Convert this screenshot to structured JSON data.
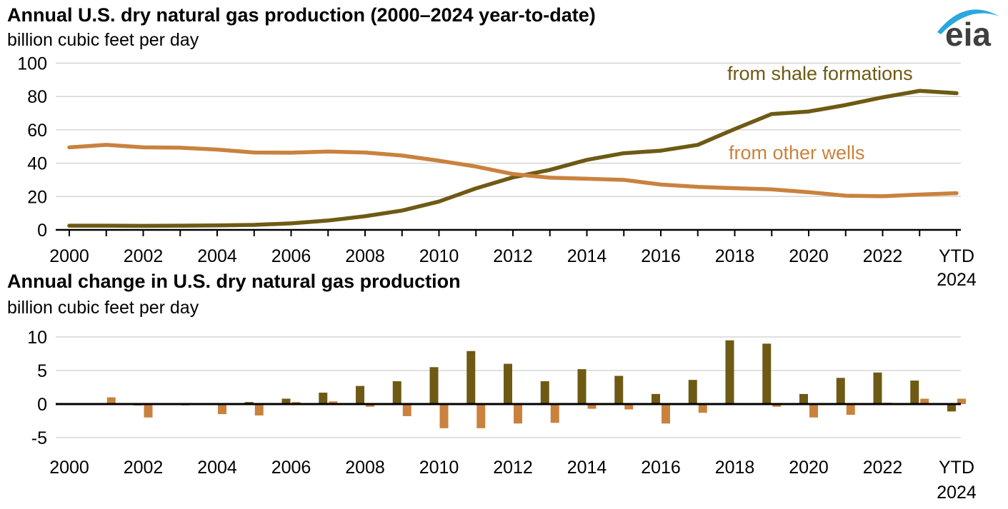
{
  "logo": {
    "text": "eia",
    "text_color": "#3f3f3f",
    "swoosh_color": "#29a7df"
  },
  "colors": {
    "shale": "#6e5a14",
    "other_wells": "#c9823e",
    "gridline": "#d6d6d6",
    "axis": "#000000",
    "background": "#ffffff"
  },
  "chart_data": [
    {
      "type": "line",
      "title": "Annual U.S. dry natural gas production (2000–2024 year-to-date)",
      "ylabel": "billion cubic feet per day",
      "ylim": [
        0,
        100
      ],
      "yticks": [
        0,
        20,
        40,
        60,
        80,
        100
      ],
      "grid": "horizontal",
      "legend_position": "inline annotations on plot",
      "x": [
        2000,
        2001,
        2002,
        2003,
        2004,
        2005,
        2006,
        2007,
        2008,
        2009,
        2010,
        2011,
        2012,
        2013,
        2014,
        2015,
        2016,
        2017,
        2018,
        2019,
        2020,
        2021,
        2022,
        2023,
        "YTD 2024"
      ],
      "xticks": [
        {
          "index": 0,
          "line1": "2000"
        },
        {
          "index": 2,
          "line1": "2002"
        },
        {
          "index": 4,
          "line1": "2004"
        },
        {
          "index": 6,
          "line1": "2006"
        },
        {
          "index": 8,
          "line1": "2008"
        },
        {
          "index": 10,
          "line1": "2010"
        },
        {
          "index": 12,
          "line1": "2012"
        },
        {
          "index": 14,
          "line1": "2014"
        },
        {
          "index": 16,
          "line1": "2016"
        },
        {
          "index": 18,
          "line1": "2018"
        },
        {
          "index": 20,
          "line1": "2020"
        },
        {
          "index": 22,
          "line1": "2022"
        },
        {
          "index": 24,
          "line1": "YTD",
          "line2": "2024"
        }
      ],
      "series": [
        {
          "name": "from shale formations",
          "color": "#6e5a14",
          "values": [
            2.5,
            2.5,
            2.4,
            2.5,
            2.7,
            3.0,
            3.9,
            5.6,
            8.2,
            11.6,
            17.0,
            24.9,
            31.5,
            36.0,
            42.0,
            46.0,
            47.5,
            51.0,
            60.5,
            69.5,
            71.0,
            74.9,
            79.5,
            83.4,
            82.0
          ]
        },
        {
          "name": "from other wells",
          "color": "#c9823e",
          "values": [
            49.5,
            51.0,
            49.5,
            49.3,
            48.2,
            46.4,
            46.3,
            47.0,
            46.4,
            44.6,
            41.5,
            38.0,
            33.5,
            31.3,
            30.7,
            30.0,
            27.2,
            25.8,
            25.0,
            24.3,
            22.6,
            20.5,
            20.2,
            21.2,
            22.0
          ]
        }
      ]
    },
    {
      "type": "bar",
      "title": "Annual change in U.S. dry natural gas production",
      "ylabel": "billion cubic feet per day",
      "ylim": [
        -5,
        10
      ],
      "yticks": [
        -5,
        0,
        5,
        10
      ],
      "grid": "horizontal",
      "x": [
        2000,
        2001,
        2002,
        2003,
        2004,
        2005,
        2006,
        2007,
        2008,
        2009,
        2010,
        2011,
        2012,
        2013,
        2014,
        2015,
        2016,
        2017,
        2018,
        2019,
        2020,
        2021,
        2022,
        2023,
        "YTD 2024"
      ],
      "xticks": [
        {
          "index": 0,
          "line1": "2000"
        },
        {
          "index": 2,
          "line1": "2002"
        },
        {
          "index": 4,
          "line1": "2004"
        },
        {
          "index": 6,
          "line1": "2006"
        },
        {
          "index": 8,
          "line1": "2008"
        },
        {
          "index": 10,
          "line1": "2010"
        },
        {
          "index": 12,
          "line1": "2012"
        },
        {
          "index": 14,
          "line1": "2014"
        },
        {
          "index": 16,
          "line1": "2016"
        },
        {
          "index": 18,
          "line1": "2018"
        },
        {
          "index": 20,
          "line1": "2020"
        },
        {
          "index": 22,
          "line1": "2022"
        },
        {
          "index": 24,
          "line1": "YTD",
          "line2": "2024"
        }
      ],
      "series": [
        {
          "name": "from shale formations",
          "color": "#6e5a14",
          "values": [
            null,
            0.0,
            -0.2,
            0.1,
            0.1,
            0.3,
            0.8,
            1.7,
            2.7,
            3.4,
            5.5,
            7.9,
            6.0,
            3.4,
            5.2,
            4.2,
            1.5,
            3.6,
            9.5,
            9.0,
            1.5,
            3.9,
            4.7,
            3.5,
            -1.1
          ]
        },
        {
          "name": "from other wells",
          "color": "#c9823e",
          "values": [
            null,
            1.0,
            -2.0,
            -0.2,
            -1.5,
            -1.7,
            0.3,
            0.4,
            -0.4,
            -1.8,
            -3.6,
            -3.6,
            -2.9,
            -2.8,
            -0.7,
            -0.8,
            -2.9,
            -1.3,
            0.0,
            -0.4,
            -2.0,
            -1.6,
            0.2,
            0.8,
            0.8
          ]
        }
      ]
    }
  ]
}
